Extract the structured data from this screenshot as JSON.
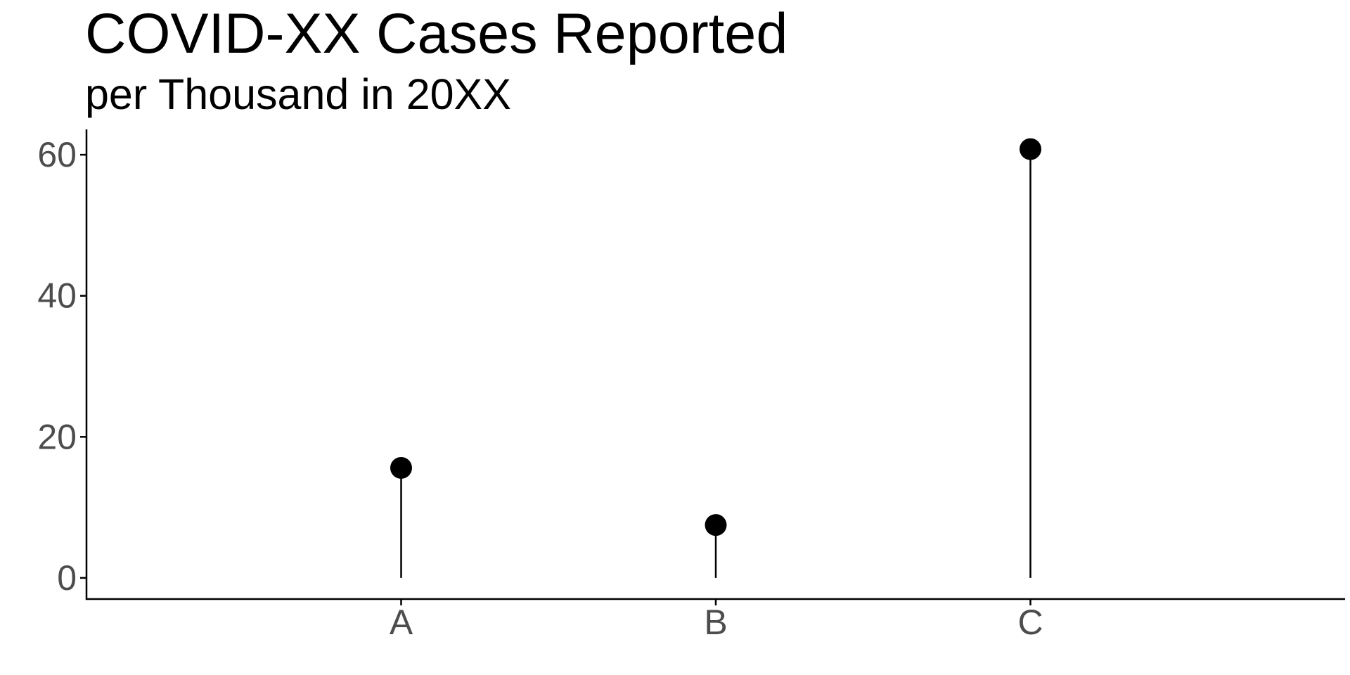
{
  "chart_data": {
    "type": "lollipop",
    "title": "COVID-XX Cases Reported",
    "subtitle": "per Thousand in 20XX",
    "xlabel": "",
    "ylabel": "",
    "categories": [
      "A",
      "B",
      "C"
    ],
    "values": [
      15.6,
      7.5,
      60.8
    ],
    "ylim": [
      -3,
      63.6
    ],
    "yticks": [
      0,
      20,
      40,
      60
    ],
    "grid": false,
    "legend": "none",
    "colors": {
      "marker": "#000000",
      "axis": "#000000",
      "tick_label": "#4d4d4d"
    }
  }
}
